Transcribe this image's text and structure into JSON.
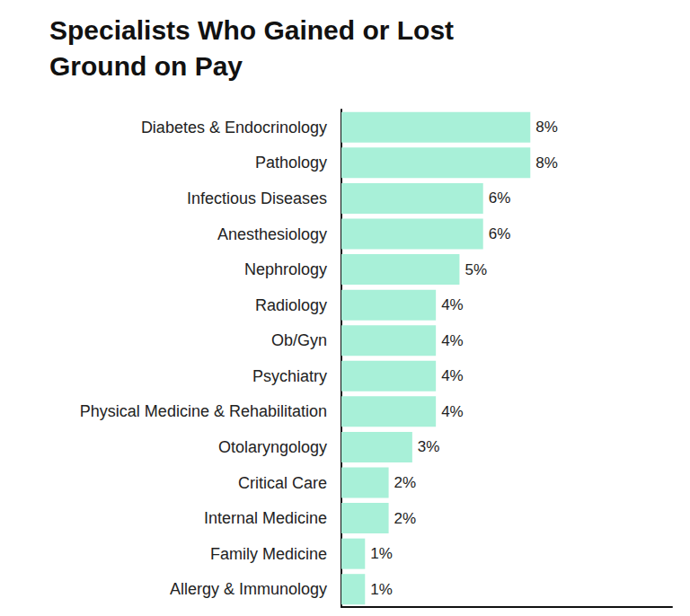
{
  "chart_data": {
    "type": "bar",
    "title": "Specialists Who Gained or Lost Ground on Pay",
    "orientation": "horizontal",
    "categories": [
      "Diabetes & Endocrinology",
      "Pathology",
      "Infectious Diseases",
      "Anesthesiology",
      "Nephrology",
      "Radiology",
      "Ob/Gyn",
      "Psychiatry",
      "Physical Medicine & Rehabilitation",
      "Otolaryngology",
      "Critical Care",
      "Internal Medicine",
      "Family Medicine",
      "Allergy & Immunology"
    ],
    "values": [
      8,
      8,
      6,
      6,
      5,
      4,
      4,
      4,
      4,
      3,
      2,
      2,
      1,
      1
    ],
    "value_labels": [
      "8%",
      "8%",
      "6%",
      "6%",
      "5%",
      "4%",
      "4%",
      "4%",
      "4%",
      "3%",
      "2%",
      "2%",
      "1%",
      "1%"
    ],
    "color": "#a8f0d8",
    "xlim": [
      0,
      14
    ],
    "data_labels": true,
    "tick_labels": "y",
    "grid": false
  }
}
